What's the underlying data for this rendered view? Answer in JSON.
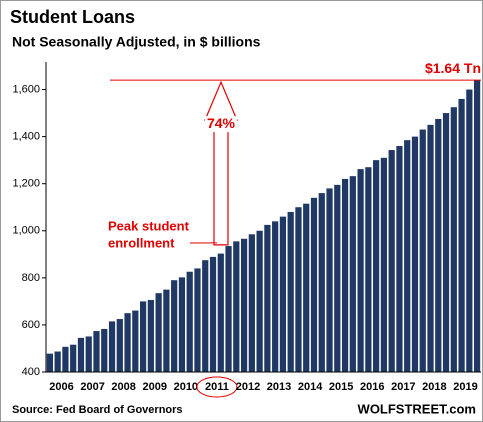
{
  "chart_data": {
    "type": "bar",
    "title": "Student Loans",
    "subtitle": "Not Seasonally Adjusted, in $ billions",
    "categories": [
      "2006",
      null,
      null,
      null,
      "2007",
      null,
      null,
      null,
      "2008",
      null,
      null,
      null,
      "2009",
      null,
      null,
      null,
      "2010",
      null,
      null,
      null,
      "2011",
      null,
      null,
      null,
      "2012",
      null,
      null,
      null,
      "2013",
      null,
      null,
      null,
      "2014",
      null,
      null,
      null,
      "2015",
      null,
      null,
      null,
      "2016",
      null,
      null,
      null,
      "2017",
      null,
      null,
      null,
      "2018",
      null,
      null,
      null,
      "2019",
      null,
      null,
      null
    ],
    "values": [
      478,
      487,
      507,
      516,
      545,
      551,
      574,
      583,
      615,
      625,
      650,
      661,
      700,
      706,
      735,
      750,
      790,
      802,
      826,
      840,
      875,
      889,
      903,
      935,
      955,
      966,
      985,
      1000,
      1025,
      1040,
      1060,
      1080,
      1100,
      1115,
      1140,
      1160,
      1180,
      1195,
      1220,
      1232,
      1262,
      1270,
      1300,
      1310,
      1343,
      1360,
      1385,
      1400,
      1430,
      1450,
      1475,
      1500,
      1525,
      1560,
      1600,
      1640
    ],
    "color": "#1f3864",
    "ylim": [
      400,
      1700
    ],
    "yticks": [
      400,
      600,
      800,
      {
        "value": 1000,
        "label": "1,000"
      },
      {
        "value": 1200,
        "label": "1,200"
      },
      {
        "value": 1400,
        "label": "1,400"
      },
      {
        "value": 1600,
        "label": "1,600"
      }
    ],
    "reference_line": {
      "value": 1640,
      "label": "$1.64 Tn",
      "color": "#e00000"
    },
    "arrow": {
      "label": "74%",
      "from": 940,
      "to": 1640
    },
    "note": [
      "Peak student",
      "enrollment"
    ],
    "source": "Source: Fed Board of Governors",
    "brand": "WOLFSTREET.com"
  }
}
